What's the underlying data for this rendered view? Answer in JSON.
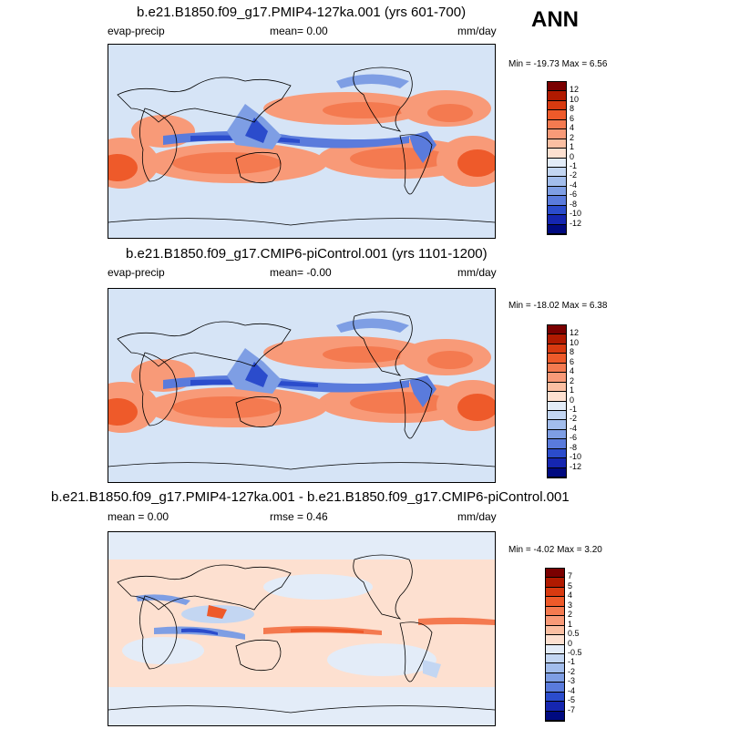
{
  "season": "ANN",
  "panels": [
    {
      "title": "b.e21.B1850.f09_g17.PMIP4-127ka.001 (yrs 601-700)",
      "left_label": "evap-precip",
      "center_label": "mean=   0.00",
      "units": "mm/day",
      "minmax": "Min = -19.73 Max =   6.56",
      "levels": [
        "12",
        "10",
        "8",
        "6",
        "4",
        "2",
        "1",
        "0",
        "-1",
        "-2",
        "-4",
        "-6",
        "-8",
        "-10",
        "-12"
      ],
      "colors": [
        "#7a0000",
        "#b01a00",
        "#d83a10",
        "#ee5a2a",
        "#f47a50",
        "#f89a78",
        "#fbbfa2",
        "#fde0d0",
        "#e3ecf8",
        "#c3d6f2",
        "#a2bdec",
        "#7e9ee4",
        "#5a7bdc",
        "#2b4ccc",
        "#1526b0",
        "#000a80"
      ]
    },
    {
      "title": "b.e21.B1850.f09_g17.CMIP6-piControl.001 (yrs 1101-1200)",
      "left_label": "evap-precip",
      "center_label": "mean=  -0.00",
      "units": "mm/day",
      "minmax": "Min = -18.02 Max =   6.38",
      "levels": [
        "12",
        "10",
        "8",
        "6",
        "4",
        "2",
        "1",
        "0",
        "-1",
        "-2",
        "-4",
        "-6",
        "-8",
        "-10",
        "-12"
      ],
      "colors": [
        "#7a0000",
        "#b01a00",
        "#d83a10",
        "#ee5a2a",
        "#f47a50",
        "#f89a78",
        "#fbbfa2",
        "#fde0d0",
        "#e3ecf8",
        "#c3d6f2",
        "#a2bdec",
        "#7e9ee4",
        "#5a7bdc",
        "#2b4ccc",
        "#1526b0",
        "#000a80"
      ]
    },
    {
      "title": "b.e21.B1850.f09_g17.PMIP4-127ka.001 - b.e21.B1850.f09_g17.CMIP6-piControl.001",
      "left_label": "mean =   0.00",
      "center_label": "rmse =   0.46",
      "units": "mm/day",
      "minmax": "Min =  -4.02 Max =   3.20",
      "levels": [
        "7",
        "5",
        "4",
        "3",
        "2",
        "1",
        "0.5",
        "0",
        "-0.5",
        "-1",
        "-2",
        "-3",
        "-4",
        "-5",
        "-7"
      ],
      "colors": [
        "#7a0000",
        "#b01a00",
        "#d83a10",
        "#ee5a2a",
        "#f47a50",
        "#f89a78",
        "#fbbfa2",
        "#fde0d0",
        "#e3ecf8",
        "#c3d6f2",
        "#a2bdec",
        "#7e9ee4",
        "#5a7bdc",
        "#2b4ccc",
        "#1526b0",
        "#000a80"
      ]
    }
  ]
}
